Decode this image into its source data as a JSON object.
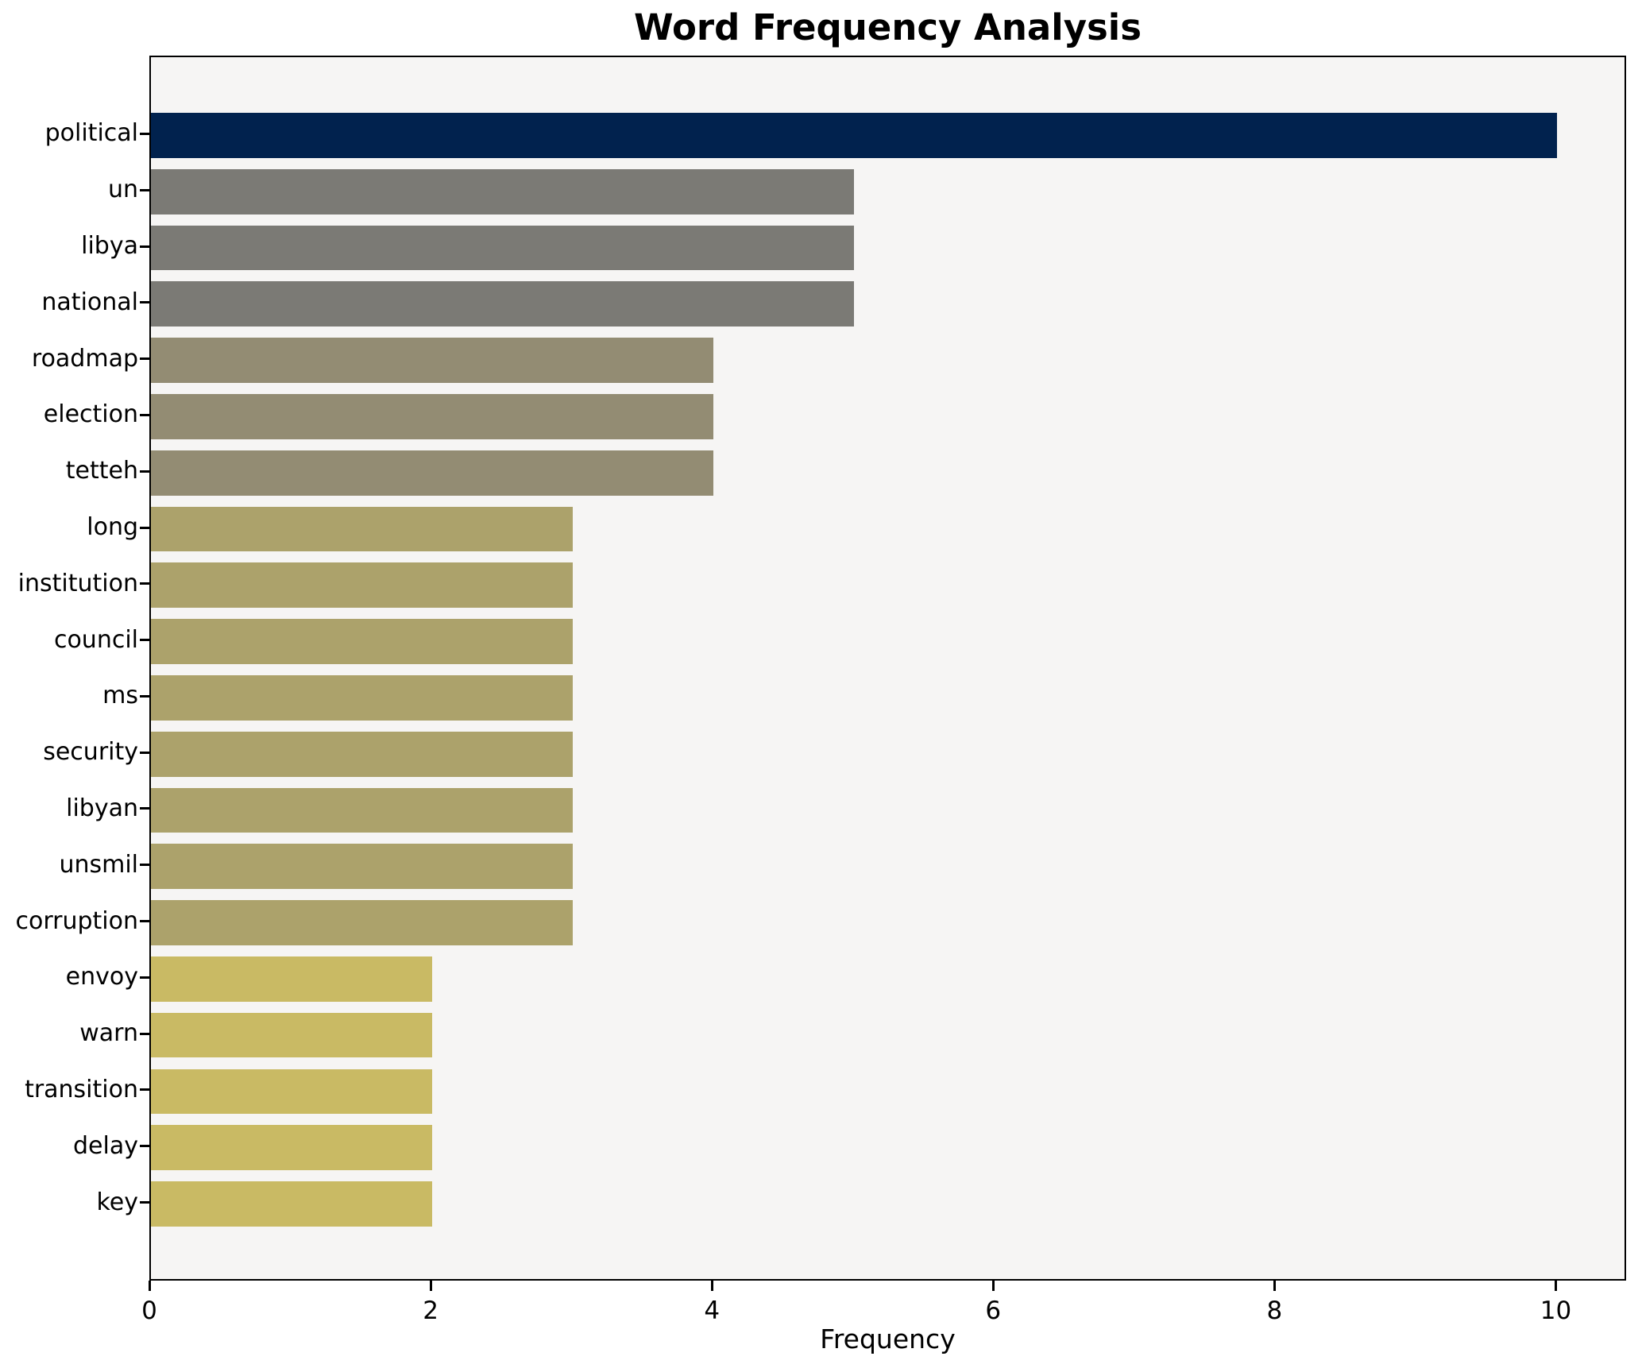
{
  "chart_data": {
    "type": "bar",
    "orientation": "horizontal",
    "title": "Word Frequency Analysis",
    "xlabel": "Frequency",
    "ylabel": "",
    "grid": false,
    "legend_position": "none",
    "xlim": [
      0,
      10.5
    ],
    "x_ticks": [
      "0",
      "2",
      "4",
      "6",
      "8",
      "10"
    ],
    "x_tick_values": [
      0,
      2,
      4,
      6,
      8,
      10
    ],
    "categories": [
      "political",
      "un",
      "libya",
      "national",
      "roadmap",
      "election",
      "tetteh",
      "long",
      "institution",
      "council",
      "ms",
      "security",
      "libyan",
      "unsmil",
      "corruption",
      "envoy",
      "warn",
      "transition",
      "delay",
      "key"
    ],
    "values": [
      10,
      5,
      5,
      5,
      4,
      4,
      4,
      3,
      3,
      3,
      3,
      3,
      3,
      3,
      3,
      2,
      2,
      2,
      2,
      2
    ],
    "bar_colors": [
      "#01224e",
      "#7b7a75",
      "#7b7a75",
      "#7b7a75",
      "#938c73",
      "#938c73",
      "#938c73",
      "#aca26b",
      "#aca26b",
      "#aca26b",
      "#aca26b",
      "#aca26b",
      "#aca26b",
      "#aca26b",
      "#aca26b",
      "#c9ba64",
      "#c9ba64",
      "#c9ba64",
      "#c9ba64",
      "#c9ba64"
    ],
    "colors": {
      "plot_background": "#f6f5f4",
      "figure_background": "#ffffff",
      "spine": "#000000",
      "text": "#000000"
    }
  }
}
